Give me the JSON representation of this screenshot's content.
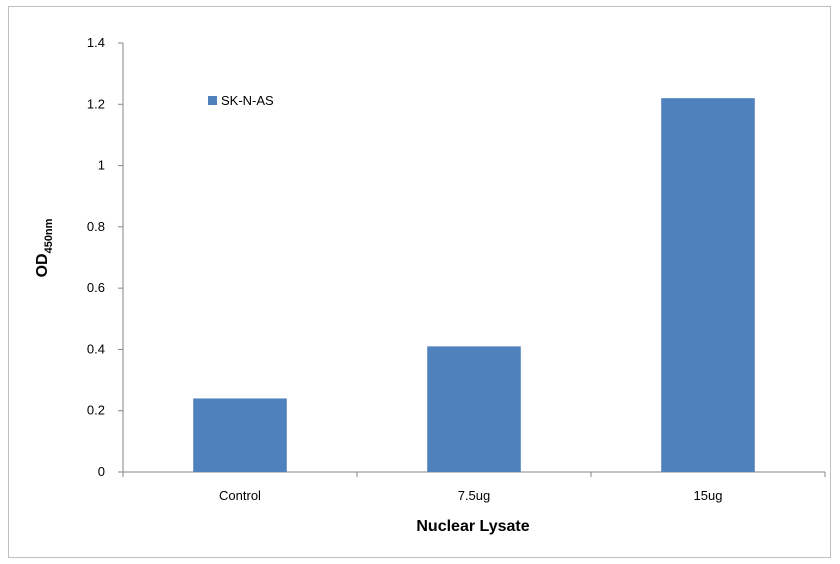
{
  "chart_data": {
    "type": "bar",
    "categories": [
      "Control",
      "7.5ug",
      "15ug"
    ],
    "series": [
      {
        "name": "SK-N-AS",
        "values": [
          0.24,
          0.41,
          1.22
        ],
        "color": "#4f81bd"
      }
    ],
    "title": "",
    "xlabel": "Nuclear Lysate",
    "ylabel_main": "OD",
    "ylabel_sub": "450nm",
    "ylim": [
      0,
      1.4
    ],
    "yticks": [
      "0",
      "0.2",
      "0.4",
      "0.6",
      "0.8",
      "1",
      "1.2",
      "1.4"
    ],
    "grid": false,
    "legend_position": "top-left"
  }
}
